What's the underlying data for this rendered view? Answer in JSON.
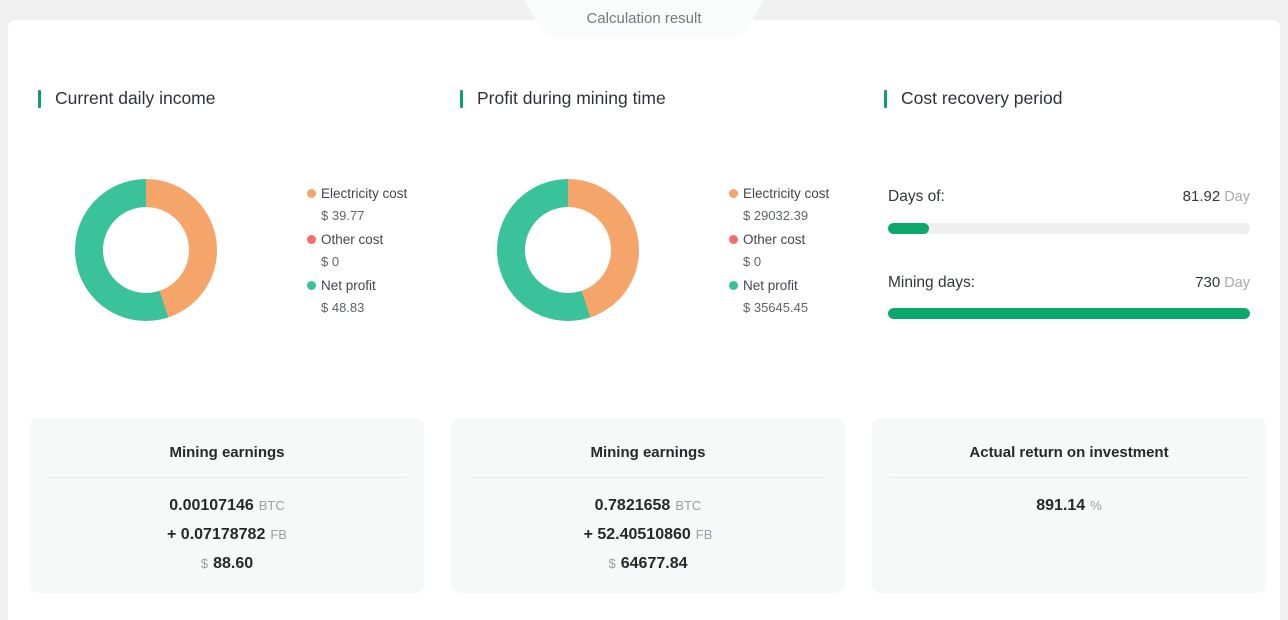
{
  "tab": {
    "label": "Calculation result"
  },
  "colors": {
    "accent_green": "#0ca06b",
    "progress_green": "#0aa86b",
    "progress_track": "#efefef",
    "donut_orange": "#f5a56a",
    "donut_red": "#f56c6c",
    "donut_green": "#3ac29b"
  },
  "sections": {
    "daily": {
      "title": "Current daily income",
      "legend": [
        {
          "name": "Electricity cost",
          "value": "$ 39.77",
          "color": "#f5a56a"
        },
        {
          "name": "Other cost",
          "value": "$ 0",
          "color": "#f56c6c"
        },
        {
          "name": "Net profit",
          "value": "$ 48.83",
          "color": "#3ac29b"
        }
      ]
    },
    "mining": {
      "title": "Profit during mining time",
      "legend": [
        {
          "name": "Electricity cost",
          "value": "$ 29032.39",
          "color": "#f5a56a"
        },
        {
          "name": "Other cost",
          "value": "$ 0",
          "color": "#f56c6c"
        },
        {
          "name": "Net profit",
          "value": "$ 35645.45",
          "color": "#3ac29b"
        }
      ]
    },
    "recovery": {
      "title": "Cost recovery period",
      "rows": [
        {
          "label": "Days of:",
          "value": "81.92",
          "unit": "Day",
          "percent": 11.22
        },
        {
          "label": "Mining days:",
          "value": "730",
          "unit": "Day",
          "percent": 100
        }
      ]
    }
  },
  "cards": [
    {
      "title": "Mining earnings",
      "lines": [
        {
          "prefix": "",
          "value": "0.00107146",
          "suffix": "BTC"
        },
        {
          "prefix": "",
          "value": "+ 0.07178782",
          "suffix": "FB"
        },
        {
          "prefix": "$",
          "value": "88.60",
          "suffix": ""
        }
      ]
    },
    {
      "title": "Mining earnings",
      "lines": [
        {
          "prefix": "",
          "value": "0.7821658",
          "suffix": "BTC"
        },
        {
          "prefix": "",
          "value": "+ 52.40510860",
          "suffix": "FB"
        },
        {
          "prefix": "$",
          "value": "64677.84",
          "suffix": ""
        }
      ]
    },
    {
      "title": "Actual return on investment",
      "lines": [
        {
          "prefix": "",
          "value": "891.14",
          "suffix": "%"
        }
      ]
    }
  ],
  "chart_data": [
    {
      "type": "pie",
      "title": "Current daily income",
      "donut": true,
      "legend_position": "right",
      "start_angle_deg": 90,
      "series": [
        {
          "name": "Electricity cost",
          "value": 39.77,
          "color": "#f5a56a"
        },
        {
          "name": "Other cost",
          "value": 0,
          "color": "#f56c6c"
        },
        {
          "name": "Net profit",
          "value": 48.83,
          "color": "#3ac29b"
        }
      ],
      "total": 88.6,
      "unit": "$"
    },
    {
      "type": "pie",
      "title": "Profit during mining time",
      "donut": true,
      "legend_position": "right",
      "start_angle_deg": 90,
      "series": [
        {
          "name": "Electricity cost",
          "value": 29032.39,
          "color": "#f5a56a"
        },
        {
          "name": "Other cost",
          "value": 0,
          "color": "#f56c6c"
        },
        {
          "name": "Net profit",
          "value": 35645.45,
          "color": "#3ac29b"
        }
      ],
      "total": 64677.84,
      "unit": "$"
    },
    {
      "type": "bar",
      "title": "Cost recovery period",
      "categories": [
        "Days of:",
        "Mining days:"
      ],
      "values": [
        81.92,
        730
      ],
      "xlim": [
        0,
        730
      ],
      "unit": "Day",
      "orientation": "horizontal"
    }
  ]
}
